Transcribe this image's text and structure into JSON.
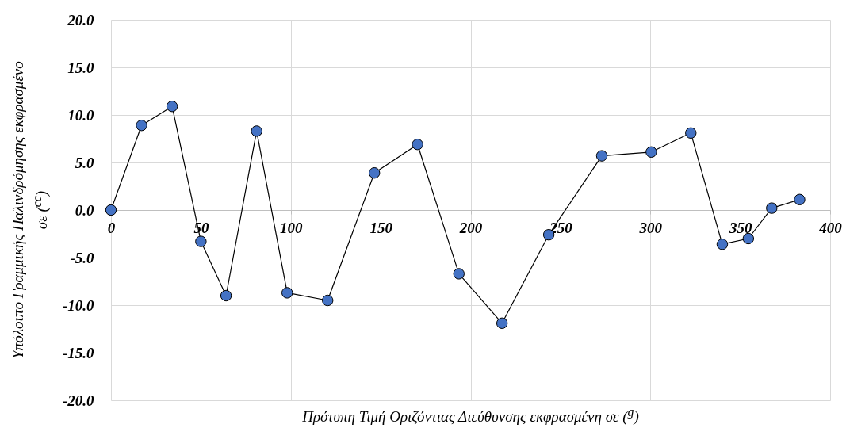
{
  "chart_data": {
    "type": "line",
    "xlabel": "Πρότυπη Τιμή Οριζόντιας Διεύθυνσης εκφρασμένη σε ($^{g}$)",
    "ylabel": "Υπόλοιπο Γραμμικής Παλινδρόμησης εκφρασμένο σε ($^{cc}$)",
    "x": [
      0,
      17,
      34,
      50,
      64,
      81,
      98,
      120.5,
      146.5,
      170.5,
      193.5,
      217.5,
      243.5,
      273,
      300.5,
      322.5,
      340,
      354.5,
      367.5,
      383
    ],
    "series": [
      {
        "color": "#4472c4",
        "values": [
          0,
          8.9,
          10.9,
          -3.3,
          -9.0,
          8.3,
          -8.7,
          -9.5,
          3.9,
          6.9,
          -6.7,
          -11.9,
          -2.6,
          5.7,
          6.1,
          8.1,
          -3.6,
          -3.0,
          0.2,
          1.1
        ]
      }
    ],
    "xlim": [
      0,
      400
    ],
    "xticks": [
      0,
      50,
      100,
      150,
      200,
      250,
      300,
      350,
      400
    ],
    "ylim": [
      -20,
      20
    ],
    "yticks": [
      {
        "value": -20,
        "label": "-20.0"
      },
      {
        "value": -15,
        "label": "-15.0"
      },
      {
        "value": -10,
        "label": "-10.0"
      },
      {
        "value": -5,
        "label": "-5.0"
      },
      {
        "value": 0,
        "label": "0.0"
      },
      {
        "value": 5,
        "label": "5.0"
      },
      {
        "value": 10,
        "label": "10.0"
      },
      {
        "value": 15,
        "label": "15.0"
      },
      {
        "value": 20,
        "label": "20.0"
      }
    ],
    "grid": true,
    "marker": "circle",
    "line_style": "solid"
  }
}
